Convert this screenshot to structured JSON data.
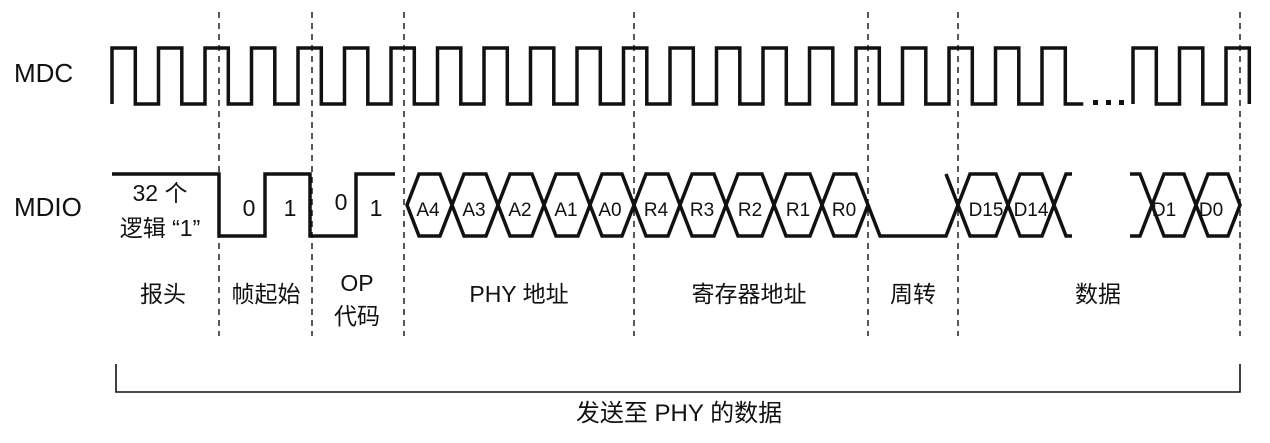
{
  "signals": {
    "clock_label": "MDC",
    "data_label": "MDIO"
  },
  "preamble": {
    "line1": "32 个",
    "line2": "逻辑 “1”"
  },
  "start_bits": [
    "0",
    "1"
  ],
  "op_bits": [
    "0",
    "1"
  ],
  "address_bits": [
    "A4",
    "A3",
    "A2",
    "A1",
    "A0"
  ],
  "register_bits": [
    "R4",
    "R3",
    "R2",
    "R1",
    "R0"
  ],
  "data_bits_first": [
    "D15",
    "D14"
  ],
  "data_bits_last": [
    "D1",
    "D0"
  ],
  "fields": {
    "preamble": "报头",
    "start": "帧起始",
    "op_line1": "OP",
    "op_line2": "代码",
    "phy_address": "PHY 地址",
    "register_address": "寄存器地址",
    "turnaround": "周转",
    "data": "数据"
  },
  "bracket_label": "发送至 PHY 的数据"
}
